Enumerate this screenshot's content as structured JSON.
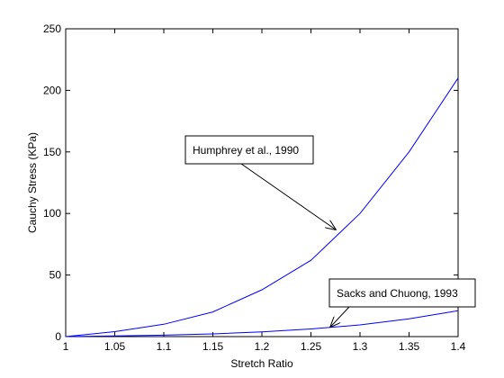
{
  "chart_data": {
    "type": "line",
    "title": "",
    "xlabel": "Stretch Ratio",
    "ylabel": "Cauchy Stress (KPa)",
    "xlim": [
      1,
      1.4
    ],
    "ylim": [
      0,
      250
    ],
    "xticks": [
      "1",
      "1.05",
      "1.1",
      "1.15",
      "1.2",
      "1.25",
      "1.3",
      "1.35",
      "1.4"
    ],
    "yticks": [
      "0",
      "50",
      "100",
      "150",
      "200",
      "250"
    ],
    "grid": false,
    "line_color": "#0000ff",
    "series": [
      {
        "x": [
          1.0,
          1.05,
          1.1,
          1.15,
          1.2,
          1.25,
          1.3,
          1.35,
          1.4
        ],
        "y": [
          0,
          4,
          10,
          20,
          38,
          62,
          100,
          150,
          210
        ]
      },
      {
        "x": [
          1.0,
          1.05,
          1.1,
          1.15,
          1.2,
          1.25,
          1.3,
          1.35,
          1.4
        ],
        "y": [
          0,
          0.5,
          1.2,
          2.2,
          3.8,
          6.2,
          9.5,
          14.5,
          21
        ]
      }
    ],
    "annotations": [
      {
        "text": "Humphrey et al., 1990",
        "target": [
          1.275,
          87
        ]
      },
      {
        "text": "Sacks and Chuong, 1993",
        "target": [
          1.27,
          8
        ]
      }
    ]
  }
}
